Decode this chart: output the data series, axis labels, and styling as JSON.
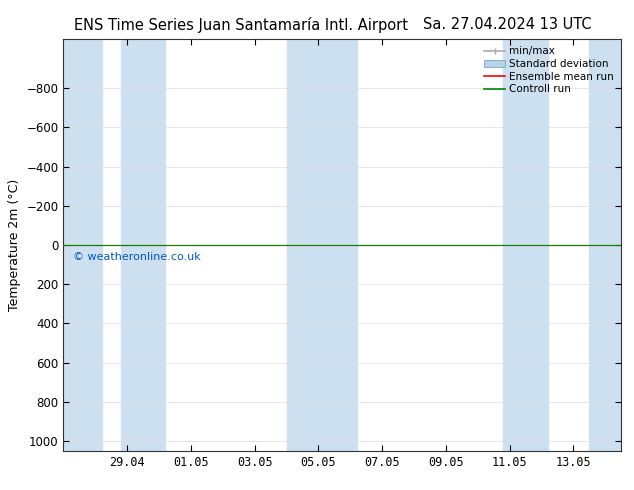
{
  "title_left": "ENS Time Series Juan Santamaría Intl. Airport",
  "title_right": "Sa. 27.04.2024 13 UTC",
  "ylabel": "Temperature 2m (°C)",
  "yticks": [
    -800,
    -600,
    -400,
    -200,
    0,
    200,
    400,
    600,
    800,
    1000
  ],
  "ylim_bottom": -1000,
  "ylim_top": 1050,
  "xtick_labels": [
    "29.04",
    "01.05",
    "03.05",
    "05.05",
    "07.05",
    "09.05",
    "11.05",
    "13.05"
  ],
  "xtick_positions": [
    2,
    4,
    6,
    8,
    10,
    12,
    14,
    16
  ],
  "xlim": [
    0,
    17.5
  ],
  "background_color": "#ffffff",
  "plot_bg_color": "#ffffff",
  "shaded_columns": [
    {
      "x_start": 0.0,
      "x_end": 1.2,
      "color": "#cce0f0"
    },
    {
      "x_start": 1.8,
      "x_end": 3.2,
      "color": "#cce0f0"
    },
    {
      "x_start": 7.0,
      "x_end": 9.2,
      "color": "#cce0f0"
    },
    {
      "x_start": 13.8,
      "x_end": 15.2,
      "color": "#cce0f0"
    },
    {
      "x_start": 16.5,
      "x_end": 17.5,
      "color": "#cce0f0"
    }
  ],
  "green_line_y": 0,
  "red_line_y": 0,
  "copyright_text": "© weatheronline.co.uk",
  "copyright_color": "#0055cc",
  "legend_entries": [
    {
      "label": "min/max",
      "color": "#999999",
      "style": "bar"
    },
    {
      "label": "Standard deviation",
      "color": "#b8d4e8",
      "style": "box"
    },
    {
      "label": "Ensemble mean run",
      "color": "#ff0000",
      "style": "line"
    },
    {
      "label": "Controll run",
      "color": "#008800",
      "style": "line"
    }
  ],
  "title_fontsize": 10.5,
  "tick_fontsize": 8.5,
  "ylabel_fontsize": 9,
  "grid_color": "#dddddd"
}
